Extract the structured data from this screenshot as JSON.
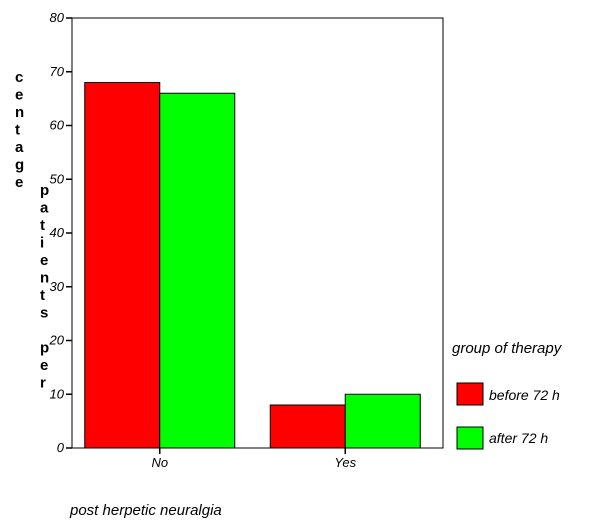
{
  "chart_data": {
    "type": "bar",
    "categories": [
      "No",
      "Yes"
    ],
    "series": [
      {
        "name": "before 72 h",
        "values": [
          68,
          8
        ],
        "color": "#ff0000"
      },
      {
        "name": "after 72 h",
        "values": [
          66,
          10
        ],
        "color": "#00ff00"
      }
    ],
    "ylim": [
      0,
      80
    ],
    "yticks": [
      0,
      10,
      20,
      30,
      40,
      50,
      60,
      70,
      80
    ],
    "ylabel_col1": "centage",
    "ylabel_col2": "patients per",
    "xlabel": "post herpetic neuralgia",
    "legend_title": "group of therapy",
    "legend_position": "right",
    "grid": false
  }
}
